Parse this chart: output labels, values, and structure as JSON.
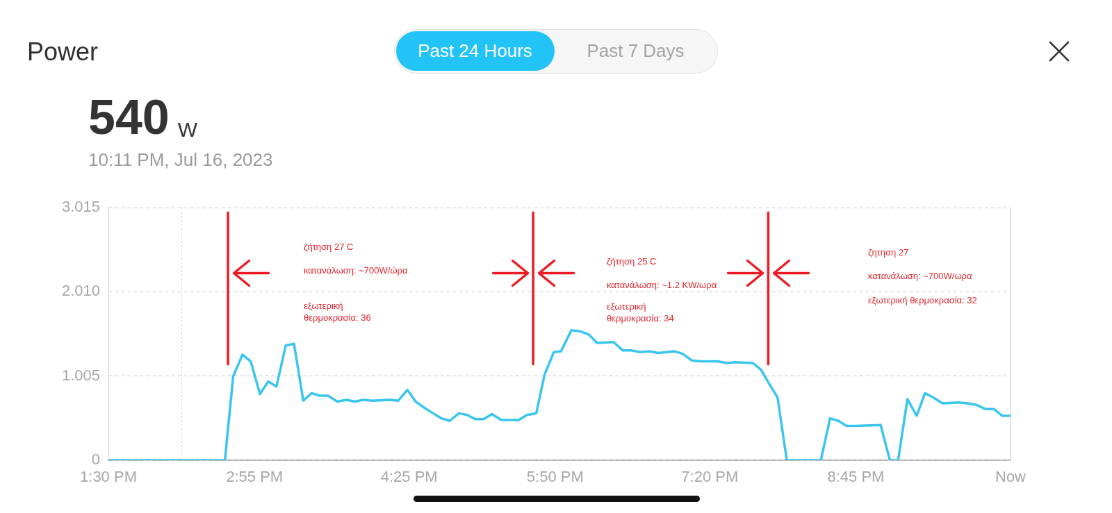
{
  "chart_data": {
    "type": "line",
    "title": "Power",
    "subtitle": "10:11 PM, Jul 16, 2023",
    "annotations": [
      "Past 24 Hours",
      "Past 7 Days",
      "540 W",
      "ζήτηση 27 C",
      "κατανάλωση: ~700W/ώρα",
      "εξωτερική\nθερμοκρασία: 36",
      "ζήτηση 25 C",
      "κατανάλωση: ~1.2 KW/ωρα",
      "εξωτερική\nθερμοκρασία: 34",
      "ζητηση 27",
      "κατανάλωση: ~700W/ωρα",
      "εξωτερική θερμοκρασία: 32"
    ],
    "x": [
      13.5,
      14.63,
      14.71,
      14.8,
      14.88,
      14.97,
      15.05,
      15.13,
      15.22,
      15.3,
      15.39,
      15.47,
      15.55,
      15.63,
      15.72,
      15.81,
      15.89,
      15.97,
      16.06,
      16.23,
      16.31,
      16.4,
      16.48,
      16.56,
      16.65,
      16.73,
      16.81,
      16.9,
      16.98,
      17.06,
      17.14,
      17.22,
      17.31,
      17.48,
      17.56,
      17.65,
      17.73,
      17.82,
      17.89,
      17.99,
      18.07,
      18.16,
      18.24,
      18.4,
      18.49,
      18.57,
      18.66,
      18.75,
      18.83,
      18.92,
      18.99,
      19.07,
      19.16,
      19.24,
      19.41,
      19.5,
      19.58,
      19.75,
      19.83,
      19.91,
      19.99,
      20.08,
      20.41,
      20.5,
      20.58,
      20.66,
      20.75,
      20.99,
      21.08,
      21.16,
      21.25,
      21.34,
      21.42,
      21.5,
      21.59,
      21.75,
      21.83,
      21.92,
      22.01,
      22.09,
      22.17,
      22.25
    ],
    "values": [
      0,
      0,
      1.0,
      1.26,
      1.18,
      0.79,
      0.94,
      0.88,
      1.37,
      1.39,
      0.71,
      0.8,
      0.77,
      0.77,
      0.7,
      0.72,
      0.7,
      0.72,
      0.71,
      0.72,
      0.71,
      0.84,
      0.7,
      0.63,
      0.56,
      0.5,
      0.47,
      0.56,
      0.54,
      0.49,
      0.49,
      0.55,
      0.48,
      0.48,
      0.54,
      0.56,
      1.02,
      1.29,
      1.3,
      1.55,
      1.54,
      1.5,
      1.4,
      1.41,
      1.31,
      1.31,
      1.29,
      1.3,
      1.28,
      1.29,
      1.3,
      1.27,
      1.19,
      1.18,
      1.18,
      1.16,
      1.17,
      1.16,
      1.08,
      0.91,
      0.75,
      0,
      0,
      0.5,
      0.47,
      0.41,
      0.41,
      0.42,
      0,
      0,
      0.73,
      0.53,
      0.8,
      0.75,
      0.68,
      0.69,
      0.68,
      0.66,
      0.61,
      0.61,
      0.53,
      0.53
    ],
    "color": "#3ac5f1",
    "marker": "none",
    "line_style": "solid",
    "xlim": [
      13.5,
      22.25
    ],
    "xticks": [
      {
        "value": 13.5,
        "label": "1:30 PM"
      },
      {
        "value": 14.917,
        "label": "2:55 PM"
      },
      {
        "value": 16.417,
        "label": "4:25 PM"
      },
      {
        "value": 17.833,
        "label": "5:50 PM"
      },
      {
        "value": 19.333,
        "label": "7:20 PM"
      },
      {
        "value": 20.75,
        "label": "8:45 PM"
      },
      {
        "value": 22.25,
        "label": "Now"
      }
    ],
    "ylim": [
      0,
      3.015
    ],
    "yticks": [
      0,
      1.005,
      {
        "value": 2.01,
        "label": "2.010"
      },
      3.015
    ],
    "grid": "y",
    "ref_lines": [
      {
        "axis": "x",
        "value": 14.21,
        "color": "#d2d2d2",
        "line_style": "dashed"
      },
      {
        "axis": "x",
        "value": 14.66,
        "color": "#ed1c24",
        "line_style": "solid"
      },
      {
        "axis": "x",
        "value": 17.62,
        "color": "#ed1c24",
        "line_style": "solid"
      },
      {
        "axis": "x",
        "value": 19.9,
        "color": "#ed1c24",
        "line_style": "solid"
      }
    ]
  }
}
